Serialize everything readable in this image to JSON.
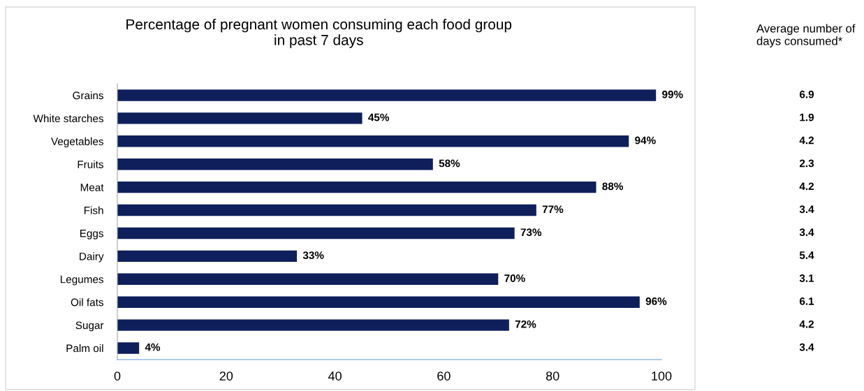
{
  "chart_data": [
    {
      "type": "bar",
      "orientation": "horizontal",
      "title": "Percentage of pregnant women consuming each food group\nin past 7 days",
      "categories": [
        "Grains",
        "White starches",
        "Vegetables",
        "Fruits",
        "Meat",
        "Fish",
        "Eggs",
        "Dairy",
        "Legumes",
        "Oil fats",
        "Sugar",
        "Palm oil"
      ],
      "values": [
        99,
        45,
        94,
        58,
        88,
        77,
        73,
        33,
        70,
        96,
        72,
        4
      ],
      "value_labels": [
        "99%",
        "45%",
        "94%",
        "58%",
        "88%",
        "77%",
        "73%",
        "33%",
        "70%",
        "96%",
        "72%",
        "4%"
      ],
      "color": "#0f1f5c",
      "xlim": [
        0,
        100
      ],
      "xticks": [
        0,
        20,
        40,
        60,
        80,
        100
      ],
      "grid": false,
      "legend": false
    },
    {
      "type": "other",
      "title": "Average number of\ndays consumed*",
      "categories": [
        null,
        null,
        null,
        null,
        null,
        null,
        null,
        null,
        null,
        null,
        null,
        null
      ],
      "values": [
        6.9,
        1.9,
        4.2,
        2.3,
        4.2,
        3.4,
        3.4,
        5.4,
        3.1,
        6.1,
        4.2,
        3.4
      ],
      "data_labels": true
    }
  ]
}
